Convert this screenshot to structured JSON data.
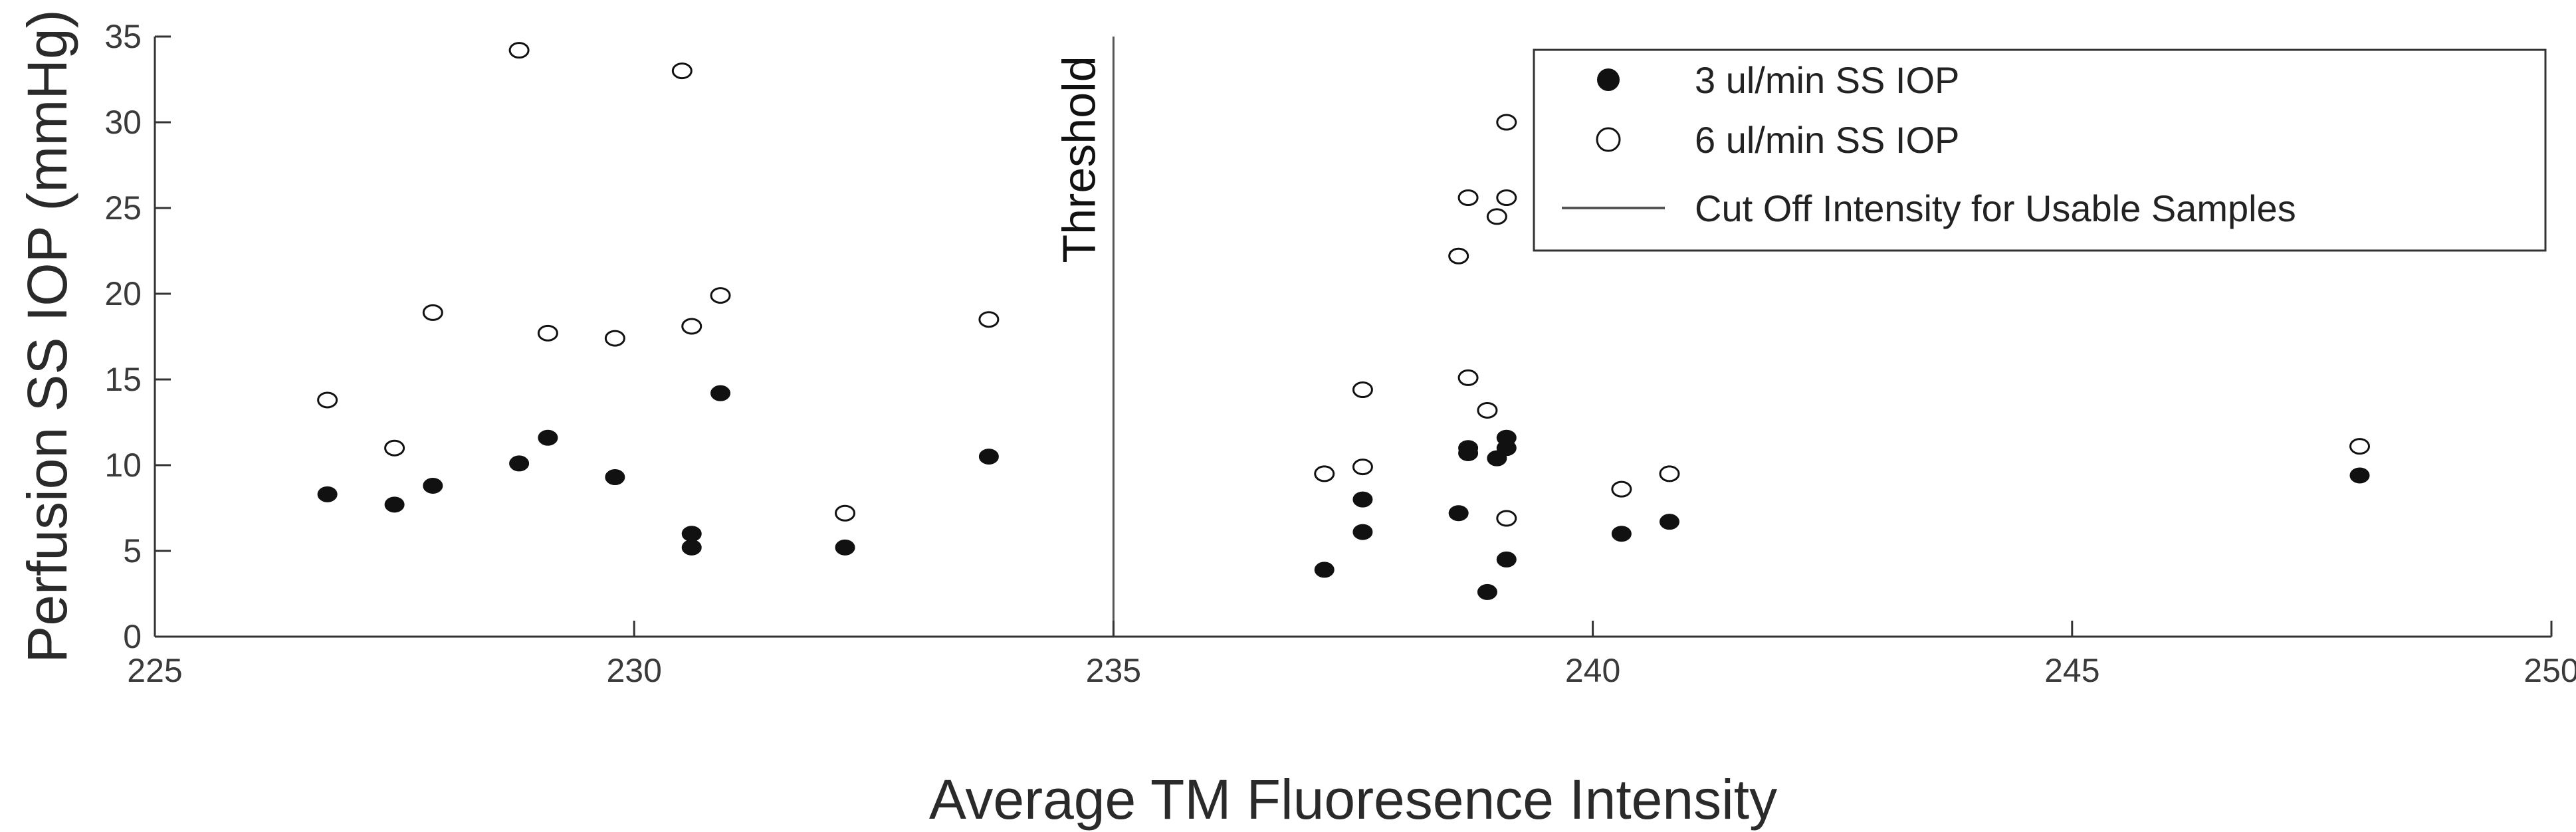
{
  "chart_data": {
    "type": "scatter",
    "xlabel": "Average TM Fluoresence Intensity",
    "ylabel": "Perfusion SS IOP (mmHg)",
    "xlim": [
      225,
      250
    ],
    "ylim": [
      0,
      35
    ],
    "xticks": [
      225,
      230,
      235,
      240,
      245,
      250
    ],
    "yticks": [
      0,
      5,
      10,
      15,
      20,
      25,
      30,
      35
    ],
    "grid": false,
    "legend_position": "top-right",
    "series": [
      {
        "name": "3 ul/min SS IOP",
        "marker": "filled-circle",
        "color": "#111111",
        "points": [
          [
            226.8,
            8.3
          ],
          [
            227.5,
            7.7
          ],
          [
            227.9,
            8.8
          ],
          [
            228.8,
            10.1
          ],
          [
            229.1,
            11.6
          ],
          [
            229.8,
            9.3
          ],
          [
            230.6,
            5.2
          ],
          [
            230.6,
            6.0
          ],
          [
            230.9,
            14.2
          ],
          [
            232.2,
            5.2
          ],
          [
            233.7,
            10.5
          ],
          [
            237.2,
            3.9
          ],
          [
            237.6,
            8.0
          ],
          [
            237.6,
            6.1
          ],
          [
            238.6,
            7.2
          ],
          [
            238.7,
            10.7
          ],
          [
            238.7,
            11.0
          ],
          [
            239.0,
            10.4
          ],
          [
            239.1,
            11.6
          ],
          [
            239.1,
            11.0
          ],
          [
            239.1,
            4.5
          ],
          [
            238.9,
            2.6
          ],
          [
            240.3,
            6.0
          ],
          [
            240.8,
            6.7
          ],
          [
            248.0,
            9.4
          ]
        ]
      },
      {
        "name": "6 ul/min SS IOP",
        "marker": "open-circle",
        "color": "#111111",
        "points": [
          [
            226.8,
            13.8
          ],
          [
            227.5,
            11.0
          ],
          [
            227.9,
            18.9
          ],
          [
            228.8,
            34.2
          ],
          [
            229.1,
            17.7
          ],
          [
            229.8,
            17.4
          ],
          [
            230.5,
            33.0
          ],
          [
            230.6,
            18.1
          ],
          [
            230.9,
            19.9
          ],
          [
            232.2,
            7.2
          ],
          [
            233.7,
            18.5
          ],
          [
            237.2,
            9.5
          ],
          [
            237.6,
            14.4
          ],
          [
            237.6,
            9.9
          ],
          [
            238.6,
            22.2
          ],
          [
            238.7,
            25.6
          ],
          [
            238.7,
            15.1
          ],
          [
            238.9,
            13.2
          ],
          [
            239.0,
            24.5
          ],
          [
            239.1,
            30.0
          ],
          [
            239.1,
            25.6
          ],
          [
            239.1,
            6.9
          ],
          [
            240.3,
            8.6
          ],
          [
            240.8,
            9.5
          ],
          [
            248.0,
            11.1
          ]
        ]
      }
    ],
    "threshold": {
      "x": 235,
      "label": "Threshold",
      "legend_label": "Cut Off Intensity for Usable Samples",
      "color": "#555555"
    }
  }
}
